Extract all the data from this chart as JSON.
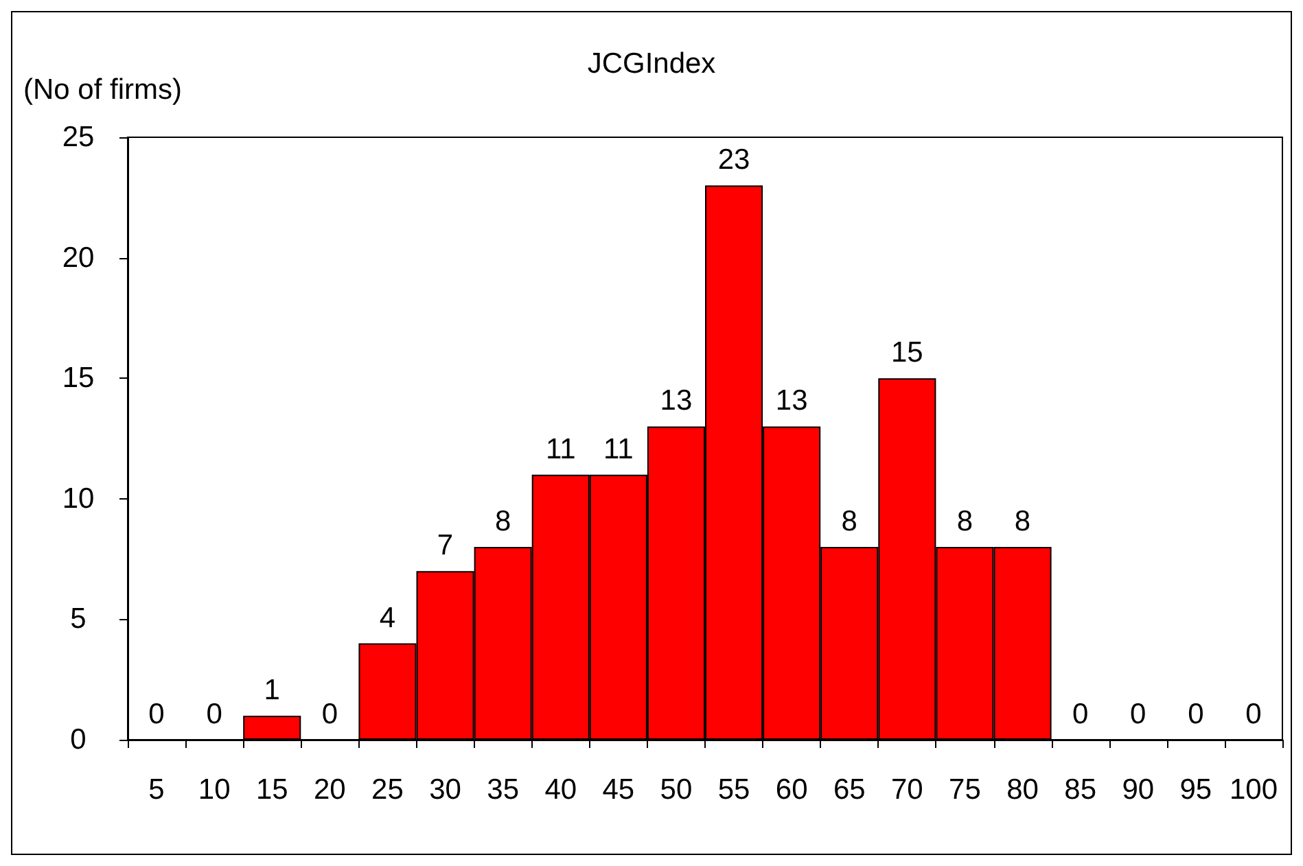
{
  "chart_data": {
    "type": "bar",
    "title": "JCGIndex",
    "ylabel": "(No of firms)",
    "categories": [
      "5",
      "10",
      "15",
      "20",
      "25",
      "30",
      "35",
      "40",
      "45",
      "50",
      "55",
      "60",
      "65",
      "70",
      "75",
      "80",
      "85",
      "90",
      "95",
      "100"
    ],
    "values": [
      0,
      0,
      1,
      0,
      4,
      7,
      8,
      11,
      11,
      13,
      23,
      13,
      8,
      15,
      8,
      8,
      0,
      0,
      0,
      0
    ],
    "color": "#ff0000",
    "ylim": [
      0,
      25
    ],
    "yticks": [
      0,
      5,
      10,
      15,
      20,
      25
    ],
    "grid": false,
    "data_labels": true
  }
}
